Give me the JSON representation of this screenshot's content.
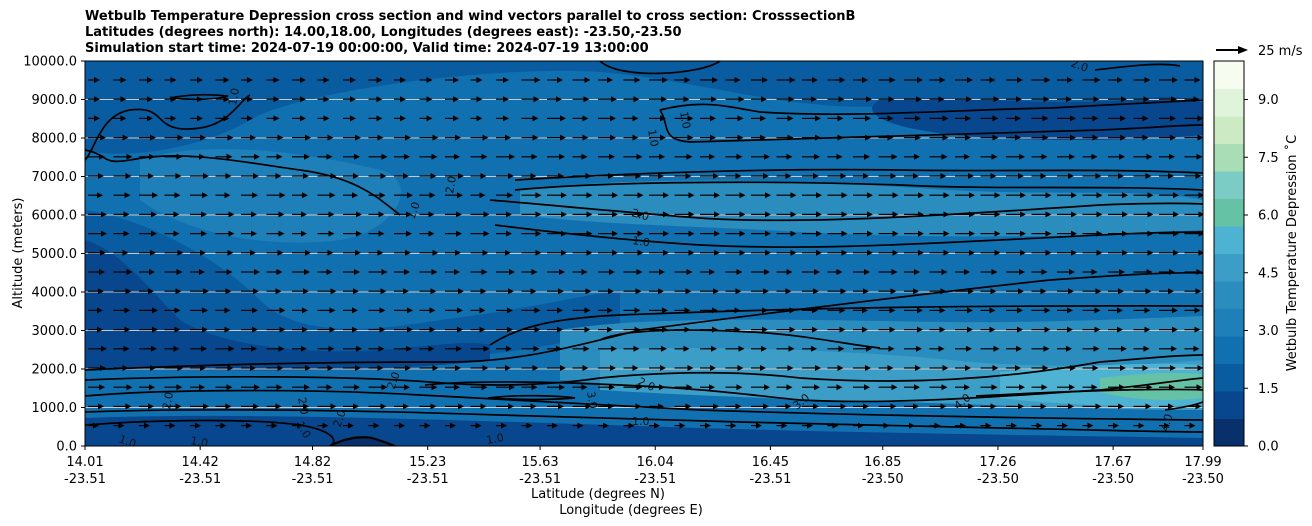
{
  "title": {
    "line1": "Wetbulb Temperature Depression cross section and wind vectors parallel to cross section: CrosssectionB",
    "line2": "Latitudes (degrees north): 14.00,18.00, Longitudes (degrees east): -23.50,-23.50",
    "line3": "Simulation start time: 2024-07-19 00:00:00, Valid time: 2024-07-19 13:00:00"
  },
  "chart_data": {
    "type": "heatmap",
    "ylabel": "Altitude (meters)",
    "xlabel_line1": "Latitude (degrees N)",
    "xlabel_line2": "Longitude (degrees E)",
    "ylim": [
      0,
      10000
    ],
    "xlim_lat": [
      14.01,
      17.99
    ],
    "yticks": [
      "0.0",
      "1000.0",
      "2000.0",
      "3000.0",
      "4000.0",
      "5000.0",
      "6000.0",
      "7000.0",
      "8000.0",
      "9000.0",
      "10000.0"
    ],
    "ytick_values": [
      0,
      1000,
      2000,
      3000,
      4000,
      5000,
      6000,
      7000,
      8000,
      9000,
      10000
    ],
    "xticks": [
      {
        "lat": "14.01",
        "lon": "-23.51",
        "v": 14.01
      },
      {
        "lat": "14.42",
        "lon": "-23.51",
        "v": 14.42
      },
      {
        "lat": "14.82",
        "lon": "-23.51",
        "v": 14.82
      },
      {
        "lat": "15.23",
        "lon": "-23.51",
        "v": 15.23
      },
      {
        "lat": "15.63",
        "lon": "-23.51",
        "v": 15.63
      },
      {
        "lat": "16.04",
        "lon": "-23.51",
        "v": 16.04
      },
      {
        "lat": "16.45",
        "lon": "-23.51",
        "v": 16.45
      },
      {
        "lat": "16.85",
        "lon": "-23.50",
        "v": 16.85
      },
      {
        "lat": "17.26",
        "lon": "-23.50",
        "v": 17.26
      },
      {
        "lat": "17.67",
        "lon": "-23.50",
        "v": 17.67
      },
      {
        "lat": "17.99",
        "lon": "-23.50",
        "v": 17.99
      }
    ],
    "colorbar": {
      "label": "Wetbulb Temperature Depression ˚C",
      "range": [
        0,
        10
      ],
      "ticks": [
        "0.0",
        "1.5",
        "3.0",
        "4.5",
        "6.0",
        "7.5",
        "9.0"
      ],
      "tick_values": [
        0,
        1.5,
        3.0,
        4.5,
        6.0,
        7.5,
        9.0
      ],
      "colors": [
        "#08306b",
        "#08468e",
        "#0a5ca0",
        "#1170b0",
        "#1f80b9",
        "#2b8cbe",
        "#3c9dc6",
        "#4eb3d3",
        "#66c2a4",
        "#7bccc4",
        "#a8ddb5",
        "#ccebc5",
        "#e0f3db",
        "#f7fcf0"
      ]
    },
    "wind_key": {
      "label": "25 m/s",
      "speed": 25
    },
    "contour_labels": [
      "1.0",
      "2.0",
      "3.0",
      "4.0"
    ],
    "grid": true
  }
}
